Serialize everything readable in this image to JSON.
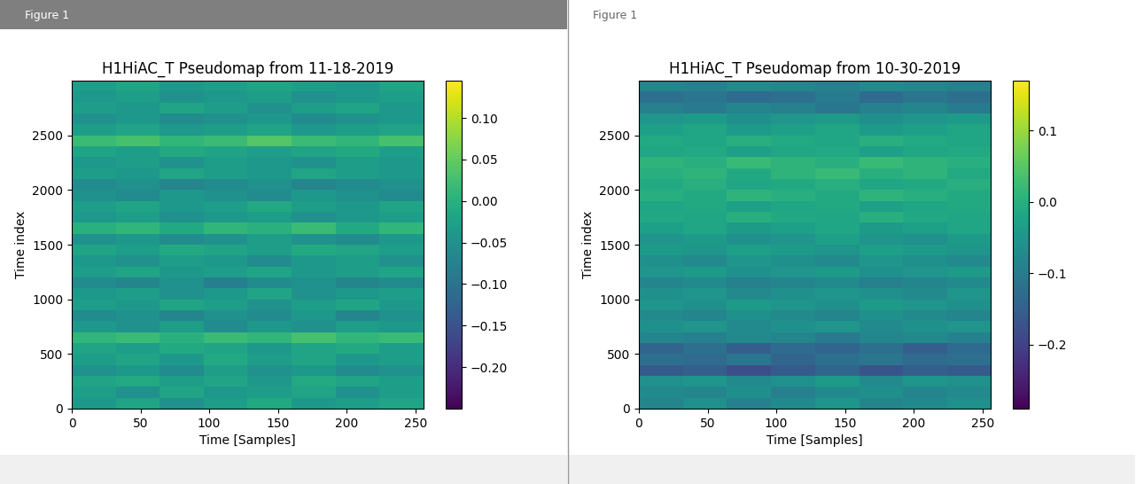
{
  "chart_data": [
    {
      "type": "heatmap",
      "window_title": "Figure 1",
      "title": "H1HiAC_T Pseudomap from 11-18-2019",
      "x_label": "Time [Samples]",
      "y_label": "Time index",
      "xlim": [
        0,
        256
      ],
      "ylim": [
        0,
        3000
      ],
      "xticks": [
        0,
        50,
        100,
        150,
        200,
        250
      ],
      "yticks": [
        0,
        500,
        1000,
        1500,
        2000,
        2500
      ],
      "colorbar_range": [
        -0.25,
        0.145
      ],
      "colorbar_ticks": [
        {
          "value": 0.1,
          "label": "0.10"
        },
        {
          "value": 0.05,
          "label": "0.05"
        },
        {
          "value": 0,
          "label": "0.00"
        },
        {
          "value": -0.05,
          "label": "−0.05"
        },
        {
          "value": -0.1,
          "label": "−0.10"
        },
        {
          "value": -0.15,
          "label": "−0.15"
        },
        {
          "value": -0.2,
          "label": "−0.20"
        }
      ],
      "cells": [
        [
          -0.04,
          -0.02,
          -0.05,
          -0.03,
          -0.01,
          -0.04,
          -0.03,
          -0.02
        ],
        [
          -0.03,
          -0.05,
          -0.02,
          -0.04,
          -0.03,
          -0.02,
          -0.05,
          -0.03
        ],
        [
          -0.02,
          -0.01,
          -0.03,
          -0.02,
          -0.04,
          -0.01,
          -0.02,
          -0.03
        ],
        [
          -0.05,
          -0.04,
          -0.06,
          -0.03,
          -0.05,
          -0.04,
          -0.06,
          -0.05
        ],
        [
          -0.03,
          -0.02,
          -0.04,
          -0.01,
          -0.03,
          -0.02,
          -0.04,
          -0.03
        ],
        [
          -0.02,
          -0.03,
          -0.01,
          -0.02,
          -0.04,
          -0.02,
          -0.01,
          -0.03
        ],
        [
          0.01,
          0.02,
          0.0,
          0.02,
          0.01,
          0.03,
          0.01,
          0.02
        ],
        [
          -0.04,
          -0.05,
          -0.03,
          -0.06,
          -0.04,
          -0.05,
          -0.03,
          -0.04
        ],
        [
          -0.06,
          -0.05,
          -0.07,
          -0.05,
          -0.06,
          -0.04,
          -0.07,
          -0.05
        ],
        [
          -0.03,
          -0.04,
          -0.02,
          -0.03,
          -0.05,
          -0.03,
          -0.02,
          -0.04
        ],
        [
          -0.04,
          -0.03,
          -0.05,
          -0.04,
          -0.02,
          -0.05,
          -0.04,
          -0.03
        ],
        [
          -0.06,
          -0.07,
          -0.05,
          -0.08,
          -0.06,
          -0.05,
          -0.07,
          -0.06
        ],
        [
          -0.03,
          -0.02,
          -0.04,
          -0.03,
          -0.02,
          -0.04,
          -0.03,
          -0.02
        ],
        [
          -0.04,
          -0.05,
          -0.03,
          -0.04,
          -0.06,
          -0.04,
          -0.03,
          -0.05
        ],
        [
          -0.02,
          -0.03,
          -0.01,
          -0.02,
          -0.03,
          -0.01,
          -0.02,
          -0.03
        ],
        [
          -0.05,
          -0.04,
          -0.06,
          -0.05,
          -0.03,
          -0.05,
          -0.06,
          -0.04
        ],
        [
          0.0,
          0.01,
          -0.01,
          0.01,
          0.0,
          0.02,
          -0.01,
          0.01
        ],
        [
          -0.04,
          -0.03,
          -0.05,
          -0.04,
          -0.03,
          -0.05,
          -0.04,
          -0.03
        ],
        [
          -0.03,
          -0.02,
          -0.04,
          -0.03,
          -0.01,
          -0.03,
          -0.04,
          -0.02
        ],
        [
          -0.05,
          -0.06,
          -0.04,
          -0.05,
          -0.06,
          -0.04,
          -0.05,
          -0.06
        ],
        [
          -0.06,
          -0.05,
          -0.07,
          -0.06,
          -0.05,
          -0.07,
          -0.06,
          -0.05
        ],
        [
          -0.03,
          -0.04,
          -0.02,
          -0.03,
          -0.04,
          -0.02,
          -0.03,
          -0.04
        ],
        [
          -0.04,
          -0.03,
          -0.05,
          -0.03,
          -0.04,
          -0.05,
          -0.03,
          -0.04
        ],
        [
          -0.02,
          -0.03,
          -0.01,
          -0.02,
          -0.03,
          -0.02,
          -0.01,
          -0.03
        ],
        [
          0.02,
          0.03,
          0.01,
          0.02,
          0.04,
          0.02,
          0.01,
          0.03
        ],
        [
          -0.03,
          -0.02,
          -0.04,
          -0.03,
          -0.02,
          -0.04,
          -0.03,
          -0.02
        ],
        [
          -0.05,
          -0.04,
          -0.06,
          -0.05,
          -0.04,
          -0.06,
          -0.05,
          -0.04
        ],
        [
          -0.03,
          -0.04,
          -0.02,
          -0.03,
          -0.05,
          -0.03,
          -0.02,
          -0.04
        ],
        [
          -0.04,
          -0.03,
          -0.05,
          -0.04,
          -0.03,
          -0.05,
          -0.04,
          -0.03
        ],
        [
          -0.03,
          -0.02,
          -0.04,
          -0.03,
          -0.02,
          -0.03,
          -0.04,
          -0.02
        ]
      ]
    },
    {
      "type": "heatmap",
      "window_title": "Figure 1",
      "title": "H1HiAC_T Pseudomap from 10-30-2019",
      "x_label": "Time [Samples]",
      "y_label": "Time index",
      "xlim": [
        0,
        256
      ],
      "ylim": [
        0,
        3000
      ],
      "xticks": [
        0,
        50,
        100,
        150,
        200,
        250
      ],
      "yticks": [
        0,
        500,
        1000,
        1500,
        2000,
        2500
      ],
      "colorbar_range": [
        -0.29,
        0.17
      ],
      "colorbar_ticks": [
        {
          "value": 0.1,
          "label": "0.1"
        },
        {
          "value": 0,
          "label": "0.0"
        },
        {
          "value": -0.1,
          "label": "−0.1"
        },
        {
          "value": -0.2,
          "label": "−0.2"
        }
      ],
      "cells": [
        [
          -0.08,
          -0.06,
          -0.09,
          -0.07,
          -0.05,
          -0.08,
          -0.07,
          -0.06
        ],
        [
          -0.07,
          -0.08,
          -0.06,
          -0.09,
          -0.07,
          -0.06,
          -0.08,
          -0.07
        ],
        [
          -0.06,
          -0.05,
          -0.07,
          -0.06,
          -0.04,
          -0.07,
          -0.05,
          -0.06
        ],
        [
          -0.16,
          -0.15,
          -0.18,
          -0.16,
          -0.14,
          -0.17,
          -0.15,
          -0.16
        ],
        [
          -0.12,
          -0.13,
          -0.11,
          -0.14,
          -0.12,
          -0.11,
          -0.13,
          -0.12
        ],
        [
          -0.14,
          -0.12,
          -0.15,
          -0.13,
          -0.14,
          -0.12,
          -0.15,
          -0.13
        ],
        [
          -0.08,
          -0.09,
          -0.07,
          -0.08,
          -0.1,
          -0.08,
          -0.07,
          -0.09
        ],
        [
          -0.06,
          -0.05,
          -0.07,
          -0.06,
          -0.05,
          -0.07,
          -0.06,
          -0.05
        ],
        [
          -0.07,
          -0.08,
          -0.06,
          -0.07,
          -0.08,
          -0.06,
          -0.07,
          -0.08
        ],
        [
          -0.05,
          -0.06,
          -0.04,
          -0.05,
          -0.06,
          -0.04,
          -0.05,
          -0.06
        ],
        [
          -0.06,
          -0.05,
          -0.07,
          -0.06,
          -0.05,
          -0.06,
          -0.07,
          -0.05
        ],
        [
          -0.08,
          -0.07,
          -0.09,
          -0.08,
          -0.07,
          -0.09,
          -0.08,
          -0.07
        ],
        [
          -0.05,
          -0.04,
          -0.06,
          -0.05,
          -0.04,
          -0.06,
          -0.05,
          -0.04
        ],
        [
          -0.06,
          -0.07,
          -0.05,
          -0.06,
          -0.07,
          -0.05,
          -0.06,
          -0.07
        ],
        [
          -0.04,
          -0.05,
          -0.03,
          -0.04,
          -0.05,
          -0.03,
          -0.04,
          -0.05
        ],
        [
          -0.05,
          -0.04,
          -0.06,
          -0.05,
          -0.03,
          -0.05,
          -0.06,
          -0.04
        ],
        [
          -0.03,
          -0.02,
          -0.04,
          -0.03,
          -0.02,
          -0.04,
          -0.03,
          -0.02
        ],
        [
          -0.01,
          -0.02,
          0.0,
          -0.01,
          -0.02,
          0.0,
          -0.01,
          -0.02
        ],
        [
          -0.02,
          -0.01,
          -0.03,
          -0.02,
          -0.01,
          -0.03,
          -0.02,
          -0.01
        ],
        [
          0.0,
          -0.01,
          0.01,
          0.0,
          -0.01,
          0.01,
          0.0,
          -0.01
        ],
        [
          -0.01,
          0.0,
          -0.02,
          -0.01,
          0.0,
          -0.02,
          -0.01,
          0.0
        ],
        [
          0.0,
          0.01,
          -0.01,
          0.01,
          0.02,
          0.0,
          0.01,
          -0.01
        ],
        [
          0.01,
          0.0,
          0.02,
          0.01,
          0.0,
          0.02,
          0.01,
          0.0
        ],
        [
          -0.02,
          -0.01,
          -0.03,
          -0.02,
          -0.01,
          -0.03,
          -0.02,
          -0.01
        ],
        [
          -0.01,
          -0.02,
          0.0,
          -0.01,
          -0.02,
          0.0,
          -0.01,
          -0.02
        ],
        [
          -0.03,
          -0.02,
          -0.04,
          -0.03,
          -0.02,
          -0.04,
          -0.03,
          -0.02
        ],
        [
          -0.05,
          -0.04,
          -0.06,
          -0.05,
          -0.04,
          -0.06,
          -0.05,
          -0.04
        ],
        [
          -0.09,
          -0.1,
          -0.08,
          -0.09,
          -0.11,
          -0.09,
          -0.08,
          -0.1
        ],
        [
          -0.12,
          -0.11,
          -0.13,
          -0.12,
          -0.1,
          -0.13,
          -0.11,
          -0.12
        ],
        [
          -0.08,
          -0.09,
          -0.07,
          -0.08,
          -0.09,
          -0.07,
          -0.08,
          -0.09
        ]
      ]
    }
  ]
}
